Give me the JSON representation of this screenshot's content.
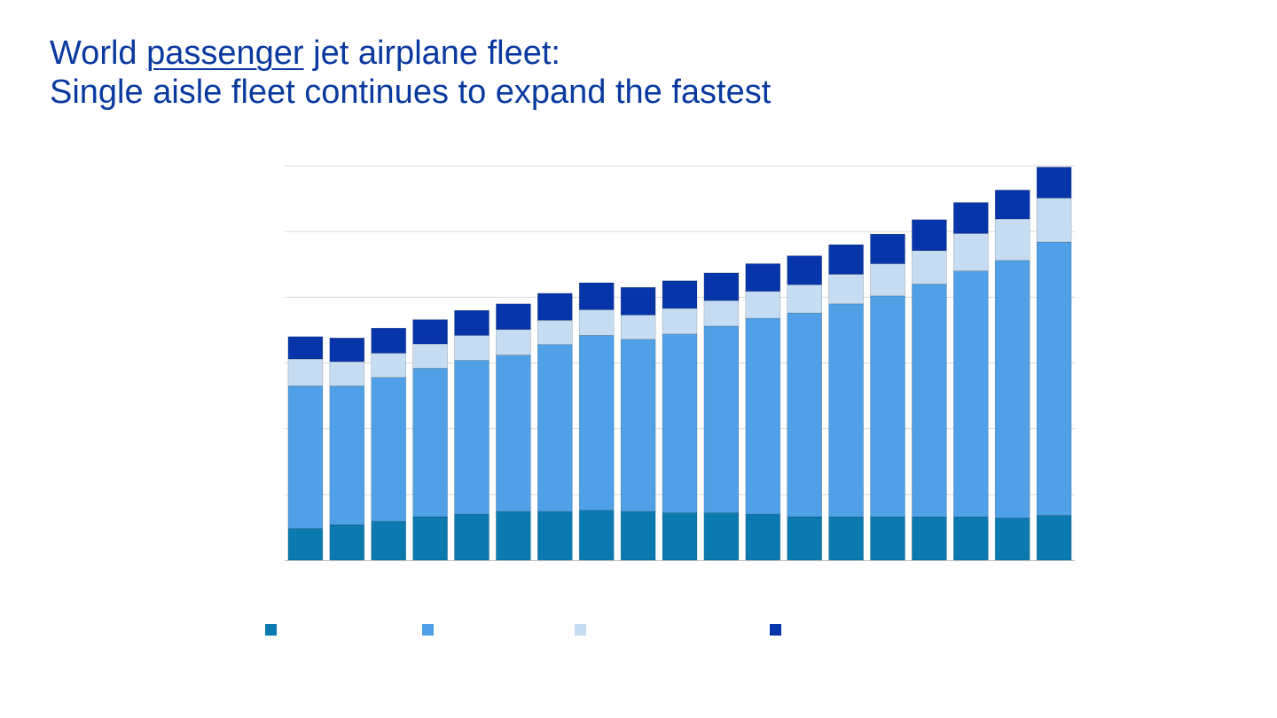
{
  "title": {
    "line1_prefix": "World ",
    "line1_emphasis": "passenger",
    "line1_suffix": " jet airplane fleet:",
    "line2": "Single aisle fleet continues to expand the fastest"
  },
  "colors": {
    "title": "#0a3aa0",
    "grid": "#d9d9d9",
    "axis": "#bfbfbf"
  },
  "chart_data": {
    "type": "bar",
    "stacked": true,
    "grid": true,
    "legend_placement": "bottom",
    "ylim": [
      0,
      6
    ],
    "y_gridlines": [
      1,
      2,
      3,
      4,
      5,
      6
    ],
    "bar_count": 19,
    "series": [
      {
        "color": "#0a7ab0",
        "values": [
          0.48,
          0.54,
          0.59,
          0.66,
          0.7,
          0.74,
          0.74,
          0.76,
          0.74,
          0.72,
          0.72,
          0.7,
          0.66,
          0.66,
          0.66,
          0.66,
          0.66,
          0.64,
          0.68
        ]
      },
      {
        "color": "#4fa0e6",
        "values": [
          2.17,
          2.11,
          2.19,
          2.26,
          2.34,
          2.38,
          2.54,
          2.66,
          2.62,
          2.72,
          2.84,
          2.98,
          3.1,
          3.24,
          3.36,
          3.54,
          3.74,
          3.92,
          4.16
        ]
      },
      {
        "color": "#c6dcf2",
        "values": [
          0.41,
          0.37,
          0.37,
          0.37,
          0.38,
          0.39,
          0.37,
          0.39,
          0.37,
          0.39,
          0.39,
          0.41,
          0.43,
          0.45,
          0.49,
          0.51,
          0.57,
          0.63,
          0.67
        ]
      },
      {
        "color": "#0535a8",
        "values": [
          0.34,
          0.36,
          0.38,
          0.37,
          0.38,
          0.39,
          0.41,
          0.41,
          0.42,
          0.42,
          0.42,
          0.42,
          0.44,
          0.45,
          0.45,
          0.47,
          0.47,
          0.44,
          0.47
        ]
      }
    ]
  }
}
